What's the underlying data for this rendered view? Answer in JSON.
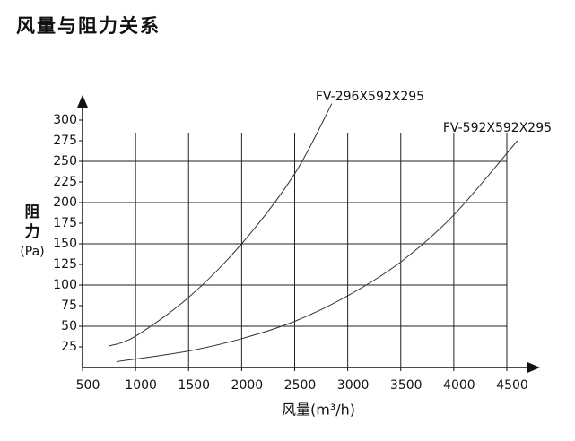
{
  "chart_data": {
    "type": "line",
    "title": "风量与阻力关系",
    "xlabel": "风量(m³/h)",
    "ylabel_lines": [
      "阻",
      "力",
      "(Pa)"
    ],
    "xlim": [
      500,
      4500
    ],
    "xticks": [
      500,
      1000,
      1500,
      2000,
      2500,
      3000,
      3500,
      4000,
      4500
    ],
    "ylim": [
      0,
      300
    ],
    "yticks": [
      25,
      50,
      75,
      100,
      125,
      150,
      175,
      200,
      225,
      250,
      275,
      300
    ],
    "grid": true,
    "series": [
      {
        "name": "FV-296X592X295",
        "color": "#333333",
        "x": [
          750,
          1000,
          1500,
          2000,
          2500,
          2850
        ],
        "values": [
          26,
          38,
          85,
          150,
          235,
          320
        ]
      },
      {
        "name": "FV-592X592X295",
        "color": "#333333",
        "x": [
          820,
          1500,
          2000,
          2500,
          3000,
          3500,
          4000,
          4600
        ],
        "values": [
          7,
          20,
          35,
          56,
          87,
          128,
          185,
          275
        ]
      }
    ]
  }
}
